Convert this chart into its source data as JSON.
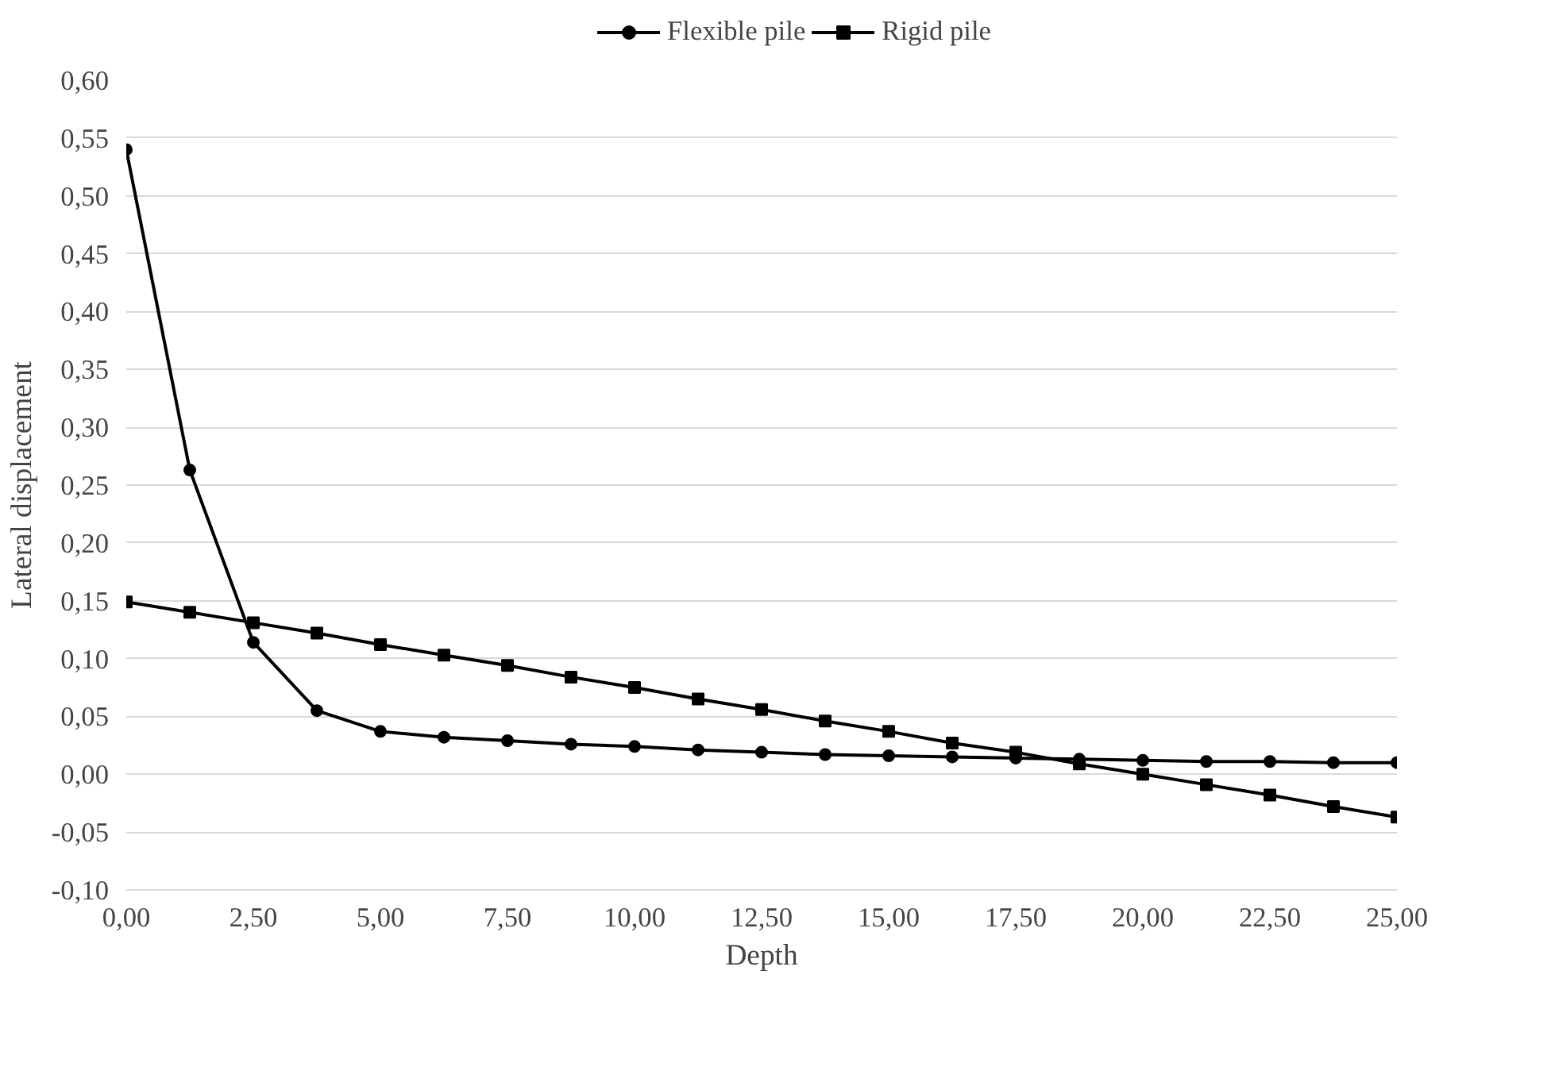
{
  "chart_data": {
    "type": "line",
    "xlabel": "Depth",
    "ylabel": "Lateral displacement",
    "x": [
      0,
      1.25,
      2.5,
      3.75,
      5,
      6.25,
      7.5,
      8.75,
      10,
      11.25,
      12.5,
      13.75,
      15,
      16.25,
      17.5,
      18.75,
      20,
      21.25,
      22.5,
      23.75,
      25
    ],
    "series": [
      {
        "name": "Flexible pile",
        "color": "#000000",
        "marker": "circle",
        "values": [
          0.54,
          0.263,
          0.114,
          0.055,
          0.037,
          0.032,
          0.029,
          0.026,
          0.024,
          0.021,
          0.019,
          0.017,
          0.016,
          0.015,
          0.014,
          0.013,
          0.012,
          0.011,
          0.011,
          0.01,
          0.01
        ]
      },
      {
        "name": "Rigid pile",
        "color": "#000000",
        "marker": "square",
        "values": [
          0.149,
          0.14,
          0.131,
          0.122,
          0.112,
          0.103,
          0.094,
          0.084,
          0.075,
          0.065,
          0.056,
          0.046,
          0.037,
          0.027,
          0.019,
          0.009,
          0.0,
          -0.009,
          -0.018,
          -0.028,
          -0.037
        ]
      }
    ],
    "xlim": [
      0,
      25
    ],
    "xticks": [
      {
        "value": 0,
        "label": "0,00"
      },
      {
        "value": 2.5,
        "label": "2,50"
      },
      {
        "value": 5,
        "label": "5,00"
      },
      {
        "value": 7.5,
        "label": "7,50"
      },
      {
        "value": 10,
        "label": "10,00"
      },
      {
        "value": 12.5,
        "label": "12,50"
      },
      {
        "value": 15,
        "label": "15,00"
      },
      {
        "value": 17.5,
        "label": "17,50"
      },
      {
        "value": 20,
        "label": "20,00"
      },
      {
        "value": 22.5,
        "label": "22,50"
      },
      {
        "value": 25,
        "label": "25,00"
      }
    ],
    "ylim": [
      -0.1,
      0.6
    ],
    "yticks": [
      {
        "value": -0.1,
        "label": "-0,10"
      },
      {
        "value": -0.05,
        "label": "-0,05"
      },
      {
        "value": 0,
        "label": "0,00"
      },
      {
        "value": 0.05,
        "label": "0,05"
      },
      {
        "value": 0.1,
        "label": "0,10"
      },
      {
        "value": 0.15,
        "label": "0,15"
      },
      {
        "value": 0.2,
        "label": "0,20"
      },
      {
        "value": 0.25,
        "label": "0,25"
      },
      {
        "value": 0.3,
        "label": "0,30"
      },
      {
        "value": 0.35,
        "label": "0,35"
      },
      {
        "value": 0.4,
        "label": "0,40"
      },
      {
        "value": 0.45,
        "label": "0,45"
      },
      {
        "value": 0.5,
        "label": "0,50"
      },
      {
        "value": 0.55,
        "label": "0,55"
      },
      {
        "value": 0.6,
        "label": "0,60"
      }
    ],
    "grid": "y",
    "legend": "top",
    "line_style": "solid"
  }
}
